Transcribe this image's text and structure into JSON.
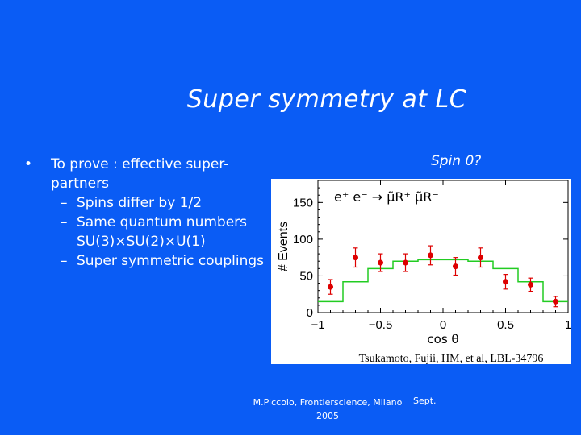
{
  "slide": {
    "title": "Super symmetry at LC",
    "bullets": {
      "main": "To prove : effective super-partners",
      "subs": [
        "Spins differ by 1/2",
        "Same quantum numbers SU(3)×SU(2)×U(1)",
        "Super symmetric couplings"
      ]
    },
    "spin_label": "Spin 0?",
    "footer": {
      "text": "M.Piccolo, Frontierscience, Milano 2005",
      "date": "Sept."
    }
  },
  "chart_data": {
    "type": "scatter",
    "title": "e⁺ e⁻ → μ̃R⁺ μ̃R⁻",
    "xlabel": "cos θ",
    "ylabel": "# Events",
    "xlim": [
      -1,
      1
    ],
    "ylim": [
      0,
      180
    ],
    "xticks": [
      -1,
      -0.5,
      0,
      0.5,
      1
    ],
    "yticks": [
      0,
      50,
      100,
      150
    ],
    "xtick_labels": [
      "−1",
      "−0.5",
      "0",
      "0.5",
      "1"
    ],
    "ytick_labels": [
      "0",
      "50",
      "100",
      "150"
    ],
    "credit": "Tsukamoto, Fujii, HM, et al, LBL-34796",
    "points": {
      "x": [
        -0.9,
        -0.7,
        -0.5,
        -0.3,
        -0.1,
        0.1,
        0.3,
        0.5,
        0.7,
        0.9
      ],
      "y": [
        35,
        75,
        68,
        68,
        78,
        63,
        75,
        42,
        38,
        15
      ],
      "err": [
        10,
        13,
        12,
        12,
        13,
        12,
        13,
        10,
        9,
        7
      ]
    },
    "curve": {
      "edges": [
        -1,
        -0.8,
        -0.6,
        -0.4,
        -0.2,
        0,
        0.2,
        0.4,
        0.6,
        0.8,
        1
      ],
      "values": [
        15,
        42,
        60,
        70,
        72,
        72,
        70,
        60,
        42,
        15
      ]
    },
    "colors": {
      "points": "#dd0000",
      "curve": "#22cc22",
      "axes": "#000000"
    }
  }
}
